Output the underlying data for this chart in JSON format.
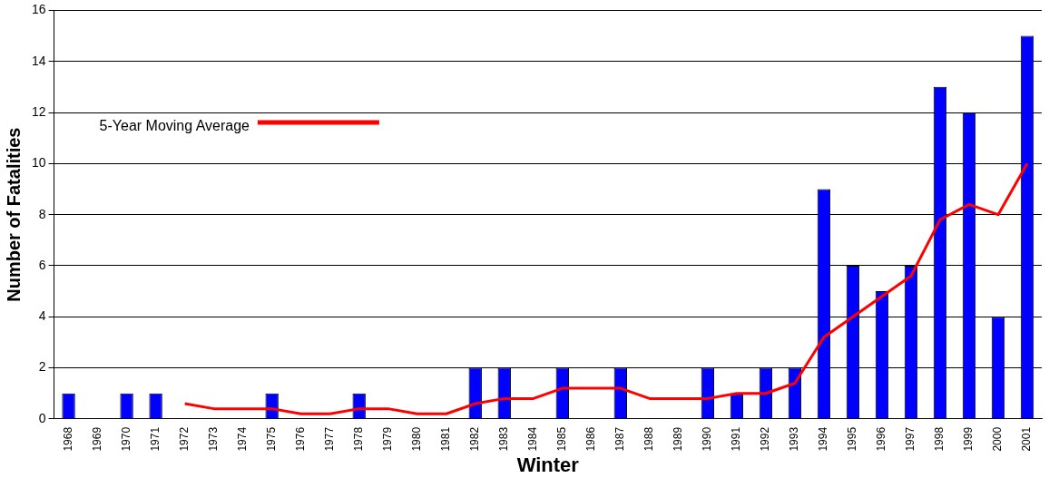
{
  "chart_data": {
    "type": "bar",
    "xlabel": "Winter",
    "ylabel": "Number of Fatalities",
    "categories": [
      "1968",
      "1969",
      "1970",
      "1971",
      "1972",
      "1973",
      "1974",
      "1975",
      "1976",
      "1977",
      "1978",
      "1979",
      "1980",
      "1981",
      "1982",
      "1983",
      "1984",
      "1985",
      "1986",
      "1987",
      "1988",
      "1989",
      "1990",
      "1991",
      "1992",
      "1993",
      "1994",
      "1995",
      "1996",
      "1997",
      "1998",
      "1999",
      "2000",
      "2001"
    ],
    "series": [
      {
        "color": "#0000ff",
        "values": [
          1,
          0,
          1,
          1,
          0,
          0,
          0,
          1,
          0,
          0,
          1,
          0,
          0,
          0,
          2,
          2,
          0,
          2,
          0,
          2,
          0,
          0,
          2,
          1,
          2,
          2,
          9,
          6,
          5,
          6,
          13,
          12,
          4,
          15
        ]
      },
      {
        "type": "line",
        "name": "5-Year Moving Average",
        "color": "#ff0000",
        "values": [
          null,
          null,
          null,
          null,
          0.6,
          0.4,
          0.4,
          0.4,
          0.2,
          0.2,
          0.4,
          0.4,
          0.2,
          0.2,
          0.6,
          0.8,
          0.8,
          1.2,
          1.2,
          1.2,
          0.8,
          0.8,
          0.8,
          1.0,
          1.0,
          1.4,
          3.2,
          4.0,
          4.8,
          5.6,
          7.8,
          8.4,
          8,
          10
        ]
      }
    ],
    "ylim": [
      0,
      16
    ],
    "yticks": [
      0,
      2,
      4,
      6,
      8,
      10,
      12,
      14,
      16
    ],
    "grid": "y",
    "legend": "top left",
    "marker": "none"
  }
}
